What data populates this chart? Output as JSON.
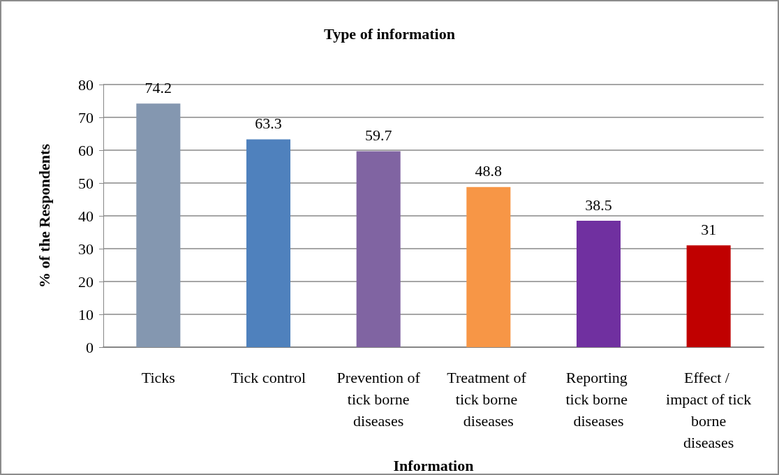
{
  "chart_data": {
    "type": "bar",
    "title": "Type of information",
    "xlabel": "Information",
    "ylabel": "% of the Respondents",
    "categories": [
      "Ticks",
      "Tick control",
      "Prevention of tick borne diseases",
      "Treatment of tick borne diseases",
      "Reporting tick borne diseases",
      "Effect / impact of tick borne diseases"
    ],
    "values": [
      74.2,
      63.3,
      59.7,
      48.8,
      38.5,
      31
    ],
    "colors": [
      "#8497b0",
      "#4f81bd",
      "#8064a2",
      "#f79646",
      "#7030a0",
      "#c00000"
    ],
    "ylim": [
      0,
      80
    ],
    "yticks": [
      0,
      10,
      20,
      30,
      40,
      50,
      60,
      70,
      80
    ],
    "grid": "y",
    "data_labels": true
  }
}
